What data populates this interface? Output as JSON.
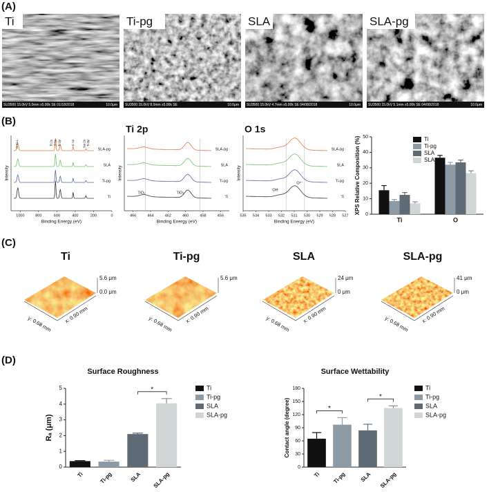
{
  "panels": {
    "A": "(A)",
    "B": "(B)",
    "C": "(C)",
    "D": "(D)"
  },
  "sem": {
    "labels": [
      "Ti",
      "Ti-pg",
      "SLA",
      "SLA-pg"
    ],
    "captions": [
      "SU3500 15.0kV 5.0mm x5.00k SE 01/18/2018",
      "SU3500 15.0kV 8.0mm x5.00k SE",
      "SU3500 15.0kV 4.7mm x5.00k SE 04/08/2018",
      "SU3500 15.0kV 5.1mm x5.00k SE 04/08/2018"
    ],
    "scales": [
      "10.0μm",
      "10.0μm",
      "10.0μm",
      "10.0μm"
    ]
  },
  "spectra": [
    {
      "xlabel": "Binding Energy (eV)",
      "ylabel": "Intensity",
      "xlim": [
        1100,
        0
      ],
      "xticks": [
        1000,
        800,
        600,
        400,
        200,
        0
      ],
      "curve_labels": [
        "SLA-pg",
        "SLA",
        "Ti-pg",
        "Ti"
      ],
      "peak_labels": [
        "O KLL",
        "Ti 2s",
        "O 1s",
        "Ti 2p",
        "C 1s",
        "Na 2s",
        "Ti 3p"
      ]
    },
    {
      "title": "Ti 2p",
      "xlabel": "Binding Energy (eV)",
      "ylabel": "Intensity",
      "xlim": [
        467,
        455
      ],
      "xticks": [
        466,
        464,
        462,
        460,
        458,
        456
      ],
      "curve_labels": [
        "SLA-pg",
        "SLA",
        "Ti-pg",
        "Ti"
      ],
      "peak_labels": [
        "TiO₂",
        "TiO₂"
      ]
    },
    {
      "title": "O 1s",
      "xlabel": "Binding Energy (eV)",
      "ylabel": "Intensity",
      "xlim": [
        535,
        527
      ],
      "xticks": [
        535,
        534,
        533,
        532,
        531,
        530,
        529,
        528,
        527
      ],
      "curve_labels": [
        "SLA-pg",
        "SLA",
        "Ti-pg",
        "Ti"
      ],
      "peak_labels": [
        "OH",
        "O²⁻"
      ]
    }
  ],
  "afm": {
    "labels": [
      "Ti",
      "Ti-pg",
      "SLA",
      "SLA-pg"
    ],
    "z_top": [
      "5.6 μm",
      "5.6 μm",
      "24 μm",
      "41 μm"
    ],
    "z_bottom": [
      "0.0 μm",
      "0 μm",
      "0 μm"
    ],
    "y_axis": "y: 0.68 mm",
    "x_axis": "x: 0.90 mm"
  },
  "chart_data": [
    {
      "type": "bar",
      "ylabel": "XPS Relative Composition (%)",
      "categories": [
        "Ti",
        "O"
      ],
      "series": [
        {
          "name": "Ti",
          "color": "#111111",
          "values": [
            15.5,
            36.5
          ],
          "errors": [
            3,
            1.5
          ]
        },
        {
          "name": "Ti-pg",
          "color": "#8d9ba6",
          "values": [
            8.5,
            32
          ],
          "errors": [
            1,
            1.5
          ]
        },
        {
          "name": "SLA",
          "color": "#5f6b74",
          "values": [
            12.5,
            33.5
          ],
          "errors": [
            1.5,
            1.5
          ]
        },
        {
          "name": "SLA-pg",
          "color": "#cfd6d5",
          "values": [
            7,
            26.5
          ],
          "errors": [
            1,
            1.5
          ]
        }
      ],
      "ylim": [
        0,
        50
      ],
      "yticks": [
        0,
        10,
        20,
        30,
        40,
        50
      ]
    },
    {
      "type": "bar",
      "title": "Surface Roughness",
      "ylabel": "Rₐ (μm)",
      "categories": [
        "Ti",
        "Ti-pg",
        "SLA",
        "SLA-pg"
      ],
      "values": [
        0.38,
        0.35,
        2.1,
        4.05
      ],
      "errors": [
        0.03,
        0.08,
        0.06,
        0.3
      ],
      "colors": [
        "#111111",
        "#8d9ba6",
        "#5f6b74",
        "#cfd6d5"
      ],
      "ylim": [
        0,
        5
      ],
      "yticks": [
        0,
        1,
        2,
        3,
        4,
        5
      ],
      "annotations": [
        "*"
      ]
    },
    {
      "type": "bar",
      "title": "Surface Wettability",
      "ylabel": "Contact angle (degree)",
      "categories": [
        "Ti",
        "Ti-pg",
        "SLA",
        "SLA-pg"
      ],
      "values": [
        65,
        97,
        84,
        135
      ],
      "errors": [
        14,
        16,
        14,
        5
      ],
      "colors": [
        "#111111",
        "#8d9ba6",
        "#5f6b74",
        "#cfd6d5"
      ],
      "ylim": [
        0,
        180
      ],
      "yticks": [
        0,
        30,
        60,
        90,
        120,
        150,
        180
      ],
      "annotations": [
        "*",
        "*"
      ]
    }
  ]
}
